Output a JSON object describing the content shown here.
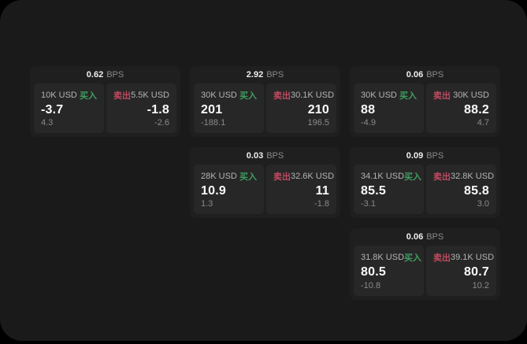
{
  "labels": {
    "bps_unit": "BPS",
    "buy": "买入",
    "sell": "卖出"
  },
  "colors": {
    "buy_green": "#3f9e5f",
    "sell_red": "#c24a60",
    "window_bg": "#1a1a1a",
    "card_bg": "#1f1f1f",
    "panel_bg": "#272727"
  },
  "cards": [
    {
      "bps": "0.62",
      "col": 1,
      "row": 1,
      "buy": {
        "amount": "10K USD",
        "value": "-3.7",
        "sub": "4.3"
      },
      "sell": {
        "amount": "5.5K USD",
        "value": "-1.8",
        "sub": "-2.6"
      }
    },
    {
      "bps": "2.92",
      "col": 2,
      "row": 1,
      "buy": {
        "amount": "30K USD",
        "value": "201",
        "sub": "-188.1"
      },
      "sell": {
        "amount": "30.1K USD",
        "value": "210",
        "sub": "196.5"
      }
    },
    {
      "bps": "0.06",
      "col": 3,
      "row": 1,
      "buy": {
        "amount": "30K USD",
        "value": "88",
        "sub": "-4.9"
      },
      "sell": {
        "amount": "30K USD",
        "value": "88.2",
        "sub": "4.7"
      }
    },
    {
      "bps": "0.03",
      "col": 2,
      "row": 2,
      "buy": {
        "amount": "28K USD",
        "value": "10.9",
        "sub": "1.3"
      },
      "sell": {
        "amount": "32.6K USD",
        "value": "11",
        "sub": "-1.8"
      }
    },
    {
      "bps": "0.09",
      "col": 3,
      "row": 2,
      "buy": {
        "amount": "34.1K USD",
        "value": "85.5",
        "sub": "-3.1"
      },
      "sell": {
        "amount": "32.8K USD",
        "value": "85.8",
        "sub": "3.0"
      }
    },
    {
      "bps": "0.06",
      "col": 3,
      "row": 3,
      "buy": {
        "amount": "31.8K USD",
        "value": "80.5",
        "sub": "-10.8"
      },
      "sell": {
        "amount": "39.1K USD",
        "value": "80.7",
        "sub": "10.2"
      }
    }
  ]
}
